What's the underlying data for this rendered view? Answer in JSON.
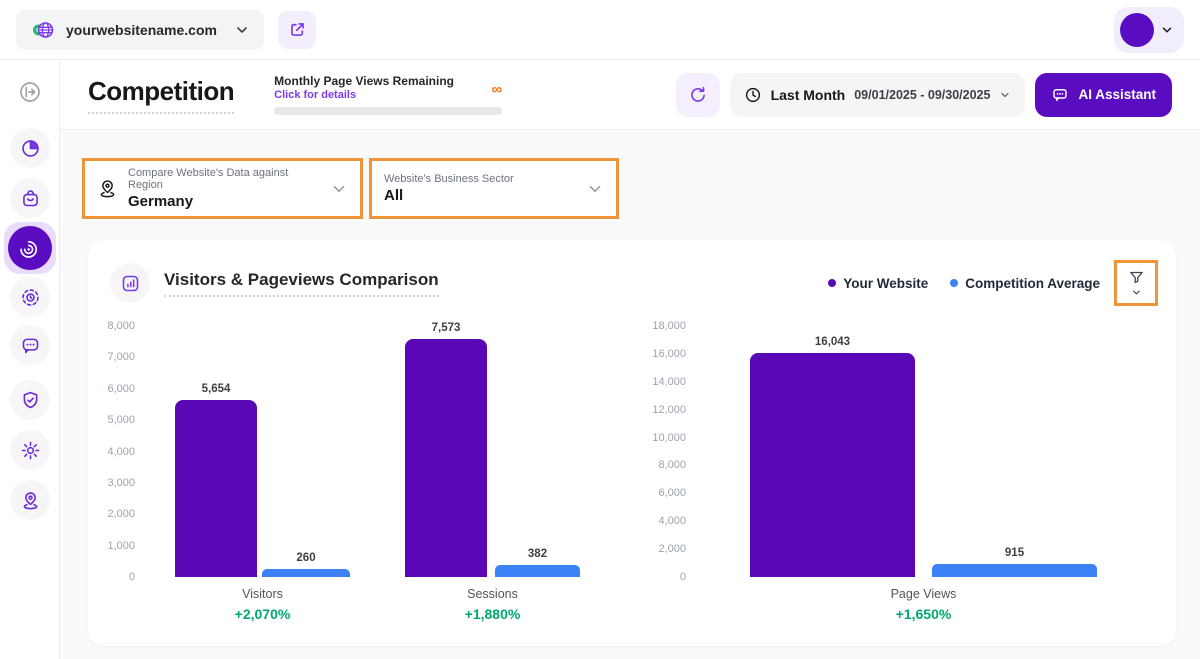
{
  "topbar": {
    "site": "yourwebsitename.com",
    "icons": [
      "globe-icon",
      "external-link-icon",
      "avatar",
      "chevron-down-icon"
    ]
  },
  "sidebar": {
    "items": [
      {
        "icon": "collapse-sidebar-icon",
        "active": false
      },
      {
        "icon": "pie-chart-icon",
        "active": false
      },
      {
        "icon": "shopping-bag-icon",
        "active": false
      },
      {
        "icon": "radar-competition-icon",
        "active": true
      },
      {
        "icon": "focus-tracking-icon",
        "active": false
      },
      {
        "icon": "chat-feedback-icon",
        "active": false
      },
      {
        "icon": "shield-check-icon",
        "active": false
      },
      {
        "icon": "gear-icon",
        "active": false
      },
      {
        "icon": "location-pin-icon",
        "active": false
      }
    ]
  },
  "header": {
    "title": "Competition",
    "quota_label": "Monthly Page Views Remaining",
    "quota_link": "Click for details",
    "quota_infinity": "∞",
    "date_preset": "Last Month",
    "date_range": "09/01/2025 - 09/30/2025",
    "ai_button": "AI Assistant"
  },
  "filters": {
    "region": {
      "label": "Compare Website's Data against Region",
      "value": "Germany"
    },
    "sector": {
      "label": "Website's Business Sector",
      "value": "All"
    }
  },
  "chart": {
    "title": "Visitors & Pageviews Comparison",
    "legend": [
      {
        "label": "Your Website",
        "color": "#5a07b5"
      },
      {
        "label": "Competition Average",
        "color": "#3b82f6"
      }
    ]
  },
  "chart_data": {
    "type": "bar",
    "title": "Visitors & Pageviews Comparison",
    "categories": [
      "Visitors",
      "Sessions",
      "Page Views"
    ],
    "series": [
      {
        "name": "Your Website",
        "values": [
          5654,
          7573,
          16043
        ],
        "color": "#5a07b5"
      },
      {
        "name": "Competition Average",
        "values": [
          260,
          382,
          915
        ],
        "color": "#3b82f6"
      }
    ],
    "value_labels": [
      "5,654",
      "260",
      "7,573",
      "382",
      "16,043",
      "915"
    ],
    "deltas": [
      "+2,070%",
      "+1,880%",
      "+1,650%"
    ],
    "delta_color": "#00a76f",
    "left_axis": {
      "min": 0,
      "max": 8000,
      "step": 1000,
      "applies_to": [
        "Visitors",
        "Sessions"
      ],
      "ticks": [
        "0",
        "1,000",
        "2,000",
        "3,000",
        "4,000",
        "5,000",
        "6,000",
        "7,000",
        "8,000"
      ]
    },
    "right_axis": {
      "min": 0,
      "max": 18000,
      "step": 2000,
      "applies_to": [
        "Page Views"
      ],
      "ticks": [
        "0",
        "2,000",
        "4,000",
        "6,000",
        "8,000",
        "10,000",
        "12,000",
        "14,000",
        "16,000",
        "18,000"
      ]
    },
    "grid": false,
    "legend_position": "top-right"
  },
  "colors": {
    "accent_purple": "#5a0cc0",
    "bar_purple": "#5a07b5",
    "bar_blue": "#3b82f6",
    "highlight_orange": "#f0943a",
    "delta_green": "#00a76f",
    "link_purple": "#7c3aed",
    "infinity_orange": "#f97316"
  }
}
